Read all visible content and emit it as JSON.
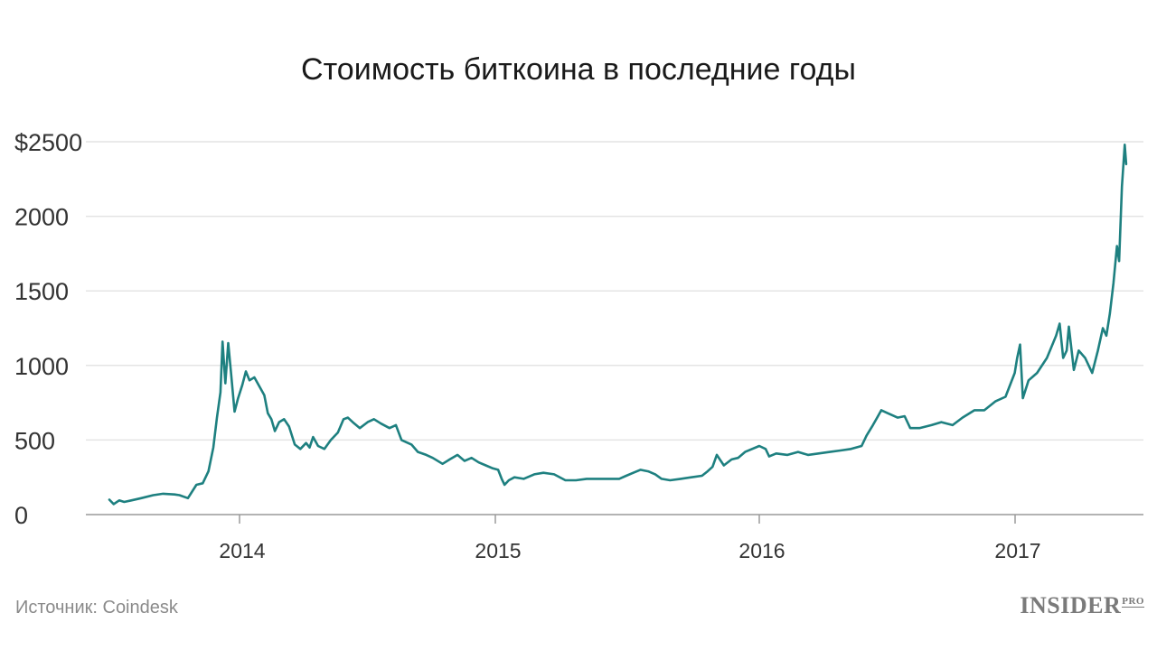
{
  "chart_data": {
    "type": "line",
    "title": "Стоимость биткоина в последние годы",
    "xlabel": "",
    "ylabel": "",
    "ylim": [
      0,
      2500
    ],
    "xlim": [
      "2013-06",
      "2017-06"
    ],
    "y_ticks": [
      0,
      500,
      1000,
      1500,
      2000,
      2500
    ],
    "y_tick_labels": [
      "0",
      "500",
      "1000",
      "1500",
      "2000",
      "$2500"
    ],
    "x_ticks": [
      2014,
      2015,
      2016,
      2017
    ],
    "x_tick_labels": [
      "2014",
      "2015",
      "2016",
      "2017"
    ],
    "grid": true,
    "line_color": "#1e8080",
    "series": [
      {
        "name": "",
        "x": [
          "2013-07-01",
          "2013-07-07",
          "2013-07-15",
          "2013-07-22",
          "2013-08-01",
          "2013-08-15",
          "2013-09-01",
          "2013-09-15",
          "2013-10-01",
          "2013-10-08",
          "2013-10-20",
          "2013-11-01",
          "2013-11-10",
          "2013-11-18",
          "2013-11-25",
          "2013-11-30",
          "2013-12-05",
          "2013-12-08",
          "2013-12-12",
          "2013-12-16",
          "2013-12-20",
          "2013-12-25",
          "2013-12-30",
          "2014-01-05",
          "2014-01-10",
          "2014-01-15",
          "2014-01-22",
          "2014-01-29",
          "2014-02-05",
          "2014-02-10",
          "2014-02-15",
          "2014-02-20",
          "2014-02-26",
          "2014-03-05",
          "2014-03-12",
          "2014-03-20",
          "2014-03-28",
          "2014-04-05",
          "2014-04-10",
          "2014-04-15",
          "2014-04-22",
          "2014-05-01",
          "2014-05-10",
          "2014-05-20",
          "2014-05-28",
          "2014-06-03",
          "2014-06-10",
          "2014-06-20",
          "2014-07-01",
          "2014-07-10",
          "2014-07-20",
          "2014-08-01",
          "2014-08-10",
          "2014-08-18",
          "2014-09-01",
          "2014-09-10",
          "2014-09-22",
          "2014-10-01",
          "2014-10-15",
          "2014-10-25",
          "2014-11-05",
          "2014-11-15",
          "2014-11-25",
          "2014-12-05",
          "2014-12-15",
          "2014-12-25",
          "2015-01-05",
          "2015-01-10",
          "2015-01-14",
          "2015-01-20",
          "2015-01-28",
          "2015-02-10",
          "2015-02-25",
          "2015-03-10",
          "2015-03-25",
          "2015-04-10",
          "2015-04-25",
          "2015-05-10",
          "2015-05-25",
          "2015-06-10",
          "2015-06-25",
          "2015-07-05",
          "2015-07-15",
          "2015-07-25",
          "2015-08-05",
          "2015-08-15",
          "2015-08-24",
          "2015-09-05",
          "2015-09-20",
          "2015-10-05",
          "2015-10-20",
          "2015-10-28",
          "2015-11-04",
          "2015-11-10",
          "2015-11-20",
          "2015-12-01",
          "2015-12-10",
          "2015-12-20",
          "2016-01-01",
          "2016-01-10",
          "2016-01-15",
          "2016-01-25",
          "2016-02-10",
          "2016-02-25",
          "2016-03-10",
          "2016-03-25",
          "2016-04-10",
          "2016-04-25",
          "2016-05-10",
          "2016-05-25",
          "2016-06-01",
          "2016-06-10",
          "2016-06-16",
          "2016-06-22",
          "2016-07-01",
          "2016-07-15",
          "2016-07-25",
          "2016-08-02",
          "2016-08-15",
          "2016-09-01",
          "2016-09-15",
          "2016-10-01",
          "2016-10-15",
          "2016-11-01",
          "2016-11-15",
          "2016-12-01",
          "2016-12-15",
          "2016-12-28",
          "2017-01-04",
          "2017-01-08",
          "2017-01-12",
          "2017-01-20",
          "2017-02-01",
          "2017-02-15",
          "2017-02-28",
          "2017-03-05",
          "2017-03-10",
          "2017-03-15",
          "2017-03-18",
          "2017-03-25",
          "2017-04-01",
          "2017-04-10",
          "2017-04-20",
          "2017-04-28",
          "2017-05-05",
          "2017-05-10",
          "2017-05-15",
          "2017-05-20",
          "2017-05-25",
          "2017-05-28",
          "2017-06-01",
          "2017-06-05",
          "2017-06-07"
        ],
        "values": [
          100,
          70,
          95,
          85,
          95,
          110,
          130,
          140,
          135,
          130,
          110,
          200,
          210,
          290,
          450,
          650,
          820,
          1160,
          880,
          1150,
          950,
          690,
          780,
          870,
          960,
          900,
          920,
          860,
          800,
          680,
          640,
          560,
          620,
          640,
          590,
          470,
          440,
          480,
          450,
          520,
          460,
          440,
          500,
          550,
          640,
          650,
          620,
          580,
          620,
          640,
          610,
          580,
          600,
          500,
          470,
          420,
          400,
          380,
          340,
          370,
          400,
          360,
          380,
          350,
          330,
          310,
          300,
          240,
          200,
          230,
          250,
          240,
          270,
          280,
          270,
          230,
          230,
          240,
          240,
          240,
          240,
          260,
          280,
          300,
          290,
          270,
          240,
          230,
          240,
          250,
          260,
          290,
          320,
          400,
          330,
          370,
          380,
          420,
          460,
          440,
          390,
          410,
          400,
          420,
          400,
          410,
          420,
          430,
          440,
          460,
          530,
          600,
          650,
          700,
          680,
          650,
          660,
          580,
          580,
          600,
          620,
          600,
          650,
          700,
          700,
          760,
          790,
          950,
          1050,
          1140,
          780,
          900,
          950,
          1050,
          1200,
          1280,
          1050,
          1100,
          1260,
          970,
          1100,
          1050,
          950,
          1100,
          1250,
          1200,
          1350,
          1550,
          1800,
          1700,
          2200,
          2480,
          2350
        ]
      }
    ]
  },
  "source": "Источник: Coindesk",
  "logo": {
    "text": "INSIDER",
    "badge": "PRO"
  }
}
